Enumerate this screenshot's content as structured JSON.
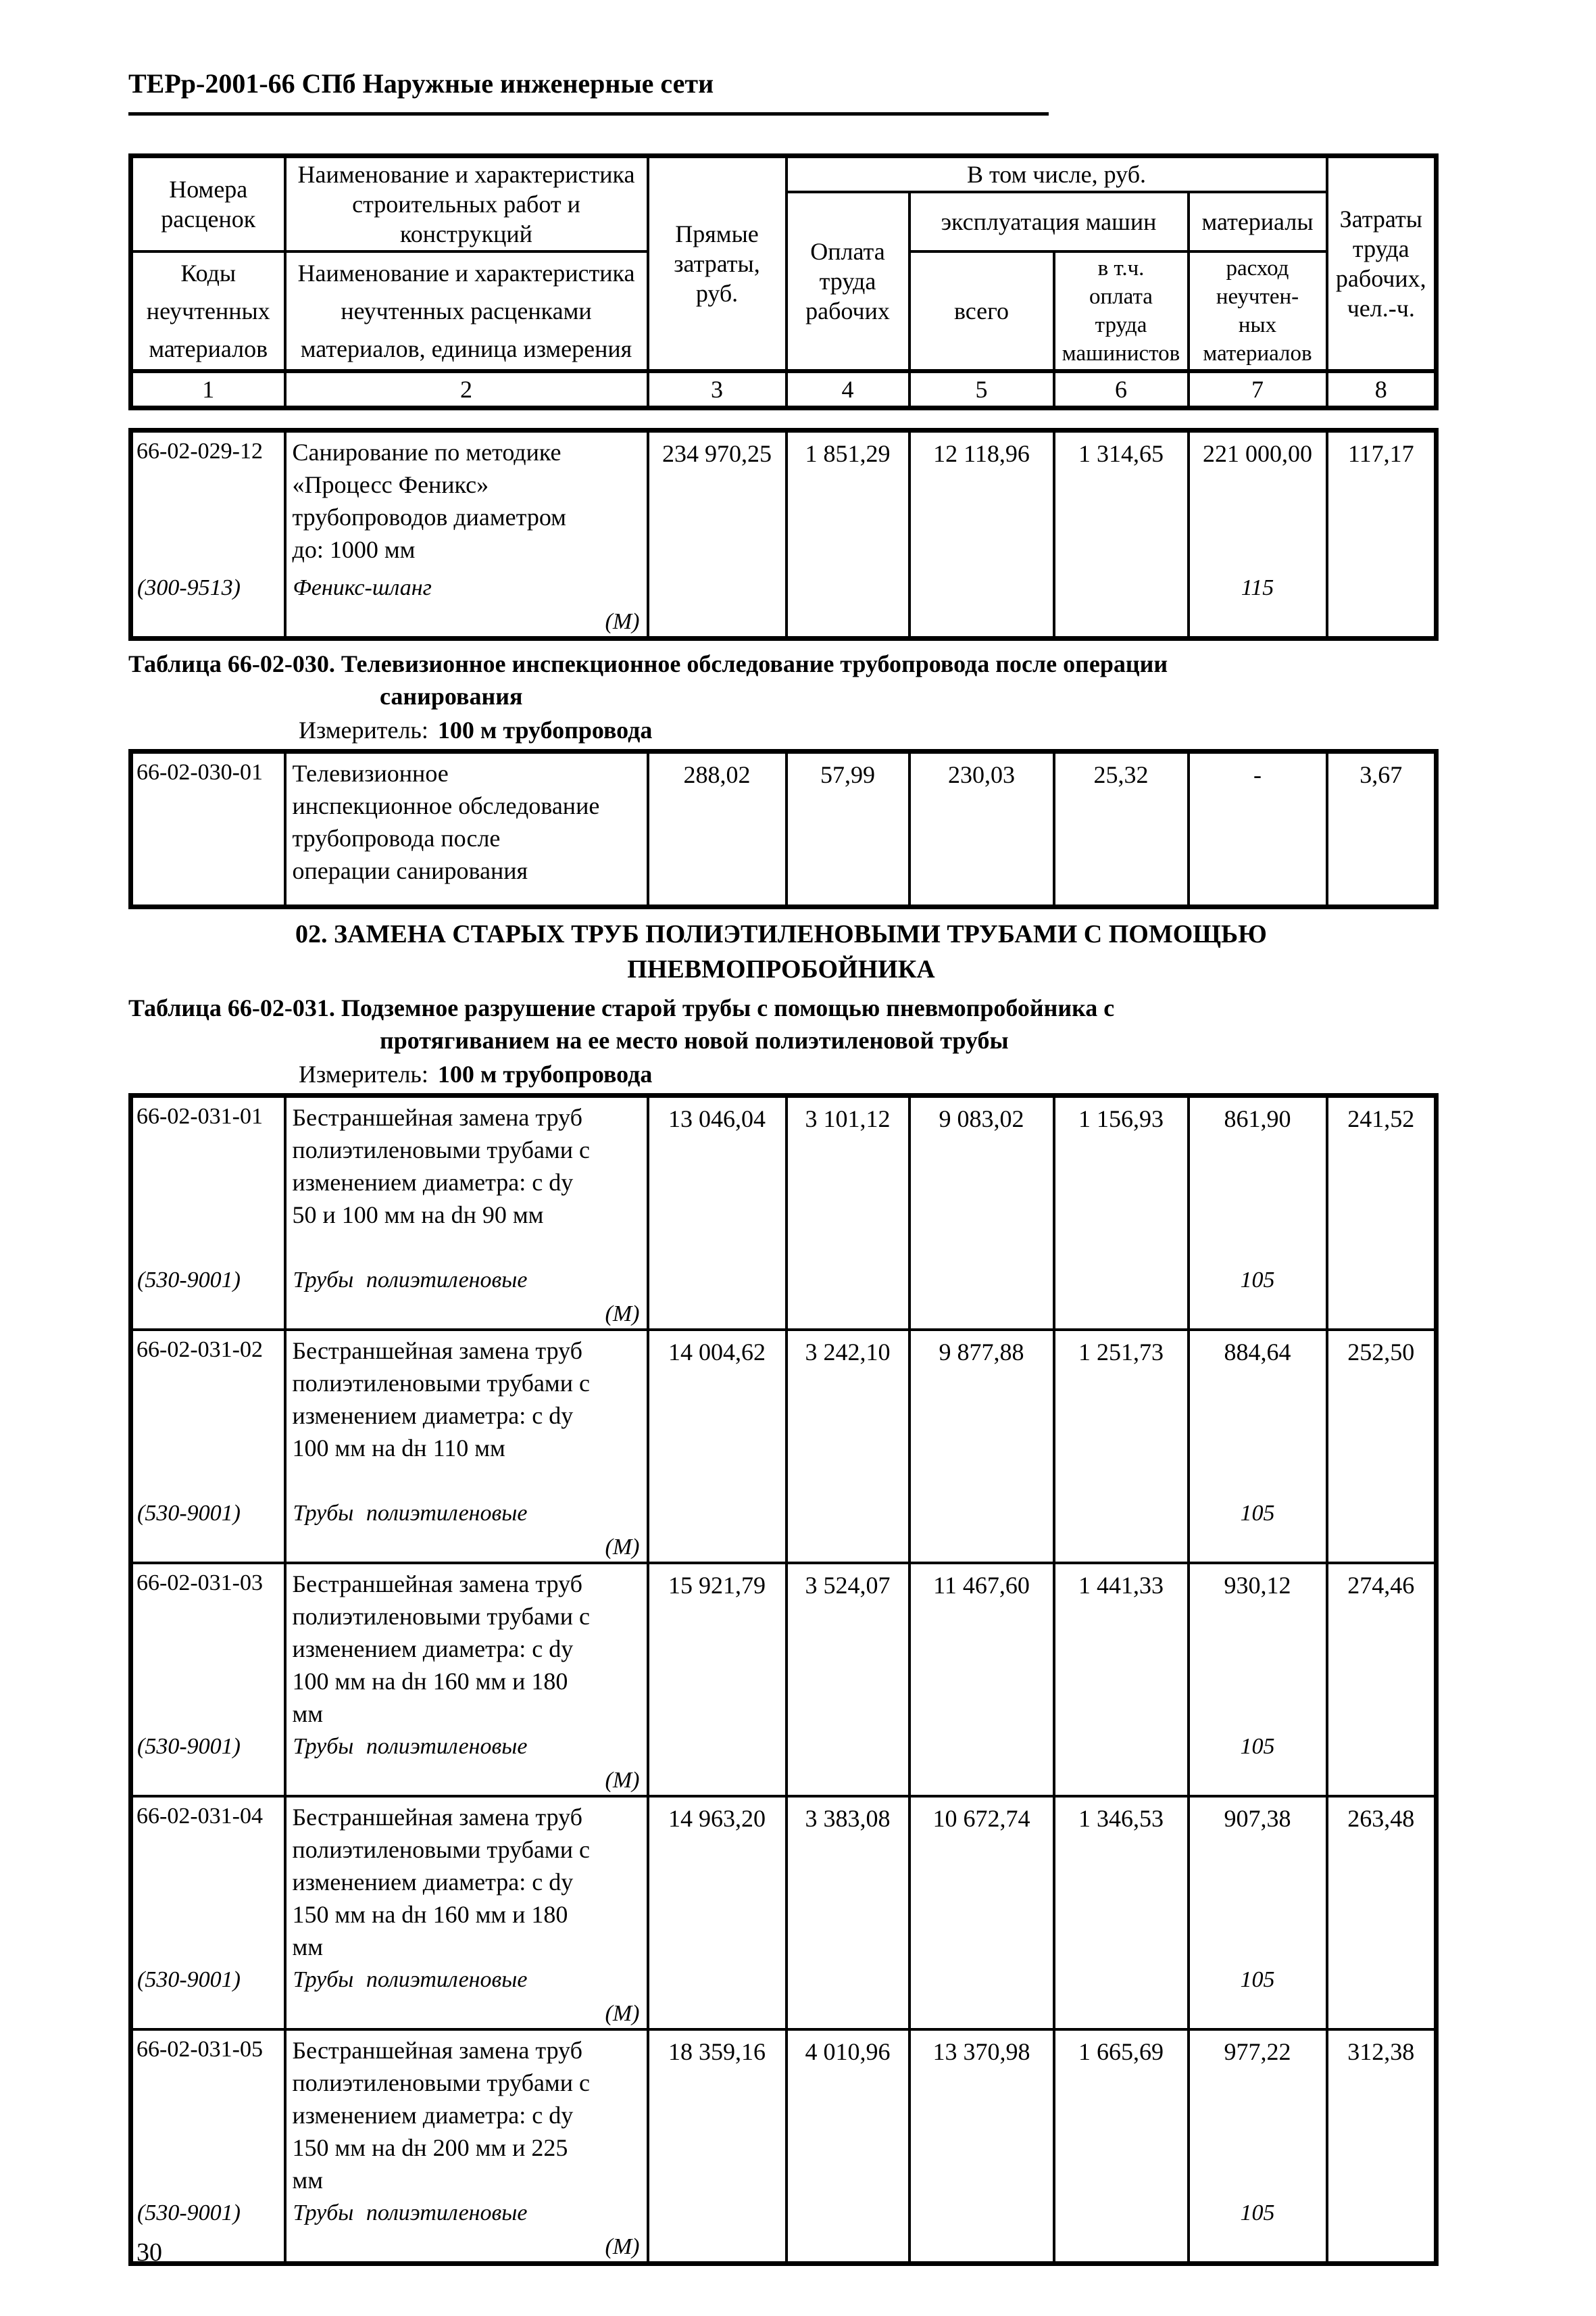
{
  "page": {
    "header_title": "ТЕРр-2001-66 СПб Наружные инженерные сети",
    "page_number": "30"
  },
  "table_header": {
    "col1_top": "Номера\nрасценок",
    "col1_bottom": "Коды\nнеучтенных\nматериалов",
    "col2_top": "Наименование и характеристика\nстроительных работ и\nконструкций",
    "col2_bottom": "Наименование и характеристика\nнеучтенных расценками\nматериалов, единица измерения",
    "col3": "Прямые\nзатраты,\nруб.",
    "group_incl": "В том числе, руб.",
    "col4": "Оплата\nтруда\nрабочих",
    "group_machines": "эксплуатация машин",
    "col5": "всего",
    "col6": "в т.ч.\nоплата\nтруда\nмашинистов",
    "group_materials": "материалы",
    "col7": "расход\nнеучтен-\nных\nматериалов",
    "col8": "Затраты\nтруда\nрабочих,\nчел.-ч.",
    "numbers": [
      "1",
      "2",
      "3",
      "4",
      "5",
      "6",
      "7",
      "8"
    ]
  },
  "table_029": {
    "rows": [
      {
        "code": "66-02-029-12",
        "work_name": "Санирование по методике\n«Процесс Феникс»\nтрубопроводов диаметром\nдо: 1000 мм",
        "material_code": "(300-9513)",
        "material_name": "Феникс-шланг",
        "material_mark": "(М)",
        "direct_costs": "234 970,25",
        "labor_pay": "1 851,29",
        "machines_total": "12 118,96",
        "machinists_pay": "1 314,65",
        "materials_cost": "221 000,00",
        "material_consumption": "115",
        "labor_hours": "117,17"
      }
    ]
  },
  "block_030": {
    "title_line1": "Таблица 66-02-030. Телевизионное инспекционное обследование трубопровода после операции",
    "title_line2": "санирования",
    "measure_label": "Измеритель:",
    "measure_value": "100 м трубопровода",
    "rows": [
      {
        "code": "66-02-030-01",
        "work_name": "Телевизионное\nинспекционное обследование\nтрубопровода после\nоперации санирования",
        "direct_costs": "288,02",
        "labor_pay": "57,99",
        "machines_total": "230,03",
        "machinists_pay": "25,32",
        "materials_cost": "-",
        "labor_hours": "3,67"
      }
    ]
  },
  "section_02": {
    "line1": "02. ЗАМЕНА СТАРЫХ ТРУБ ПОЛИЭТИЛЕНОВЫМИ ТРУБАМИ С ПОМОЩЬЮ",
    "line2": "ПНЕВМОПРОБОЙНИКА"
  },
  "block_031": {
    "title_line1": "Таблица 66-02-031. Подземное разрушение старой трубы с помощью пневмопробойника с",
    "title_line2": "протягиванием на ее место новой полиэтиленовой трубы",
    "measure_label": "Измеритель:",
    "measure_value": "100 м трубопровода",
    "rows": [
      {
        "code": "66-02-031-01",
        "work_name": "Бестраншейная замена труб\nполиэтиленовыми трубами с\nизменением диаметра: с dy\n50 и 100 мм на dн 90 мм",
        "material_code": "(530-9001)",
        "material_name": "Трубы полиэтиленовые",
        "material_mark": "(М)",
        "direct_costs": "13 046,04",
        "labor_pay": "3 101,12",
        "machines_total": "9 083,02",
        "machinists_pay": "1 156,93",
        "materials_cost": "861,90",
        "material_consumption": "105",
        "labor_hours": "241,52"
      },
      {
        "code": "66-02-031-02",
        "work_name": "Бестраншейная замена труб\nполиэтиленовыми трубами с\nизменением диаметра: с dy\n100 мм на dн 110 мм",
        "material_code": "(530-9001)",
        "material_name": "Трубы полиэтиленовые",
        "material_mark": "(М)",
        "direct_costs": "14 004,62",
        "labor_pay": "3 242,10",
        "machines_total": "9 877,88",
        "machinists_pay": "1 251,73",
        "materials_cost": "884,64",
        "material_consumption": "105",
        "labor_hours": "252,50"
      },
      {
        "code": "66-02-031-03",
        "work_name": "Бестраншейная замена труб\nполиэтиленовыми трубами с\nизменением диаметра: с dy\n100 мм на dн 160 мм и 180\nмм",
        "material_code": "(530-9001)",
        "material_name": "Трубы полиэтиленовые",
        "material_mark": "(М)",
        "direct_costs": "15 921,79",
        "labor_pay": "3 524,07",
        "machines_total": "11 467,60",
        "machinists_pay": "1 441,33",
        "materials_cost": "930,12",
        "material_consumption": "105",
        "labor_hours": "274,46"
      },
      {
        "code": "66-02-031-04",
        "work_name": "Бестраншейная замена труб\nполиэтиленовыми трубами с\nизменением диаметра: с dy\n150 мм на dн 160 мм и 180\nмм",
        "material_code": "(530-9001)",
        "material_name": "Трубы полиэтиленовые",
        "material_mark": "(М)",
        "direct_costs": "14 963,20",
        "labor_pay": "3 383,08",
        "machines_total": "10 672,74",
        "machinists_pay": "1 346,53",
        "materials_cost": "907,38",
        "material_consumption": "105",
        "labor_hours": "263,48"
      },
      {
        "code": "66-02-031-05",
        "work_name": "Бестраншейная замена труб\nполиэтиленовыми трубами с\nизменением диаметра: с dy\n150 мм на dн 200 мм и 225\nмм",
        "material_code": "(530-9001)",
        "material_name": "Трубы полиэтиленовые",
        "material_mark": "(М)",
        "direct_costs": "18 359,16",
        "labor_pay": "4 010,96",
        "machines_total": "13 370,98",
        "machinists_pay": "1 665,69",
        "materials_cost": "977,22",
        "material_consumption": "105",
        "labor_hours": "312,38"
      }
    ]
  }
}
